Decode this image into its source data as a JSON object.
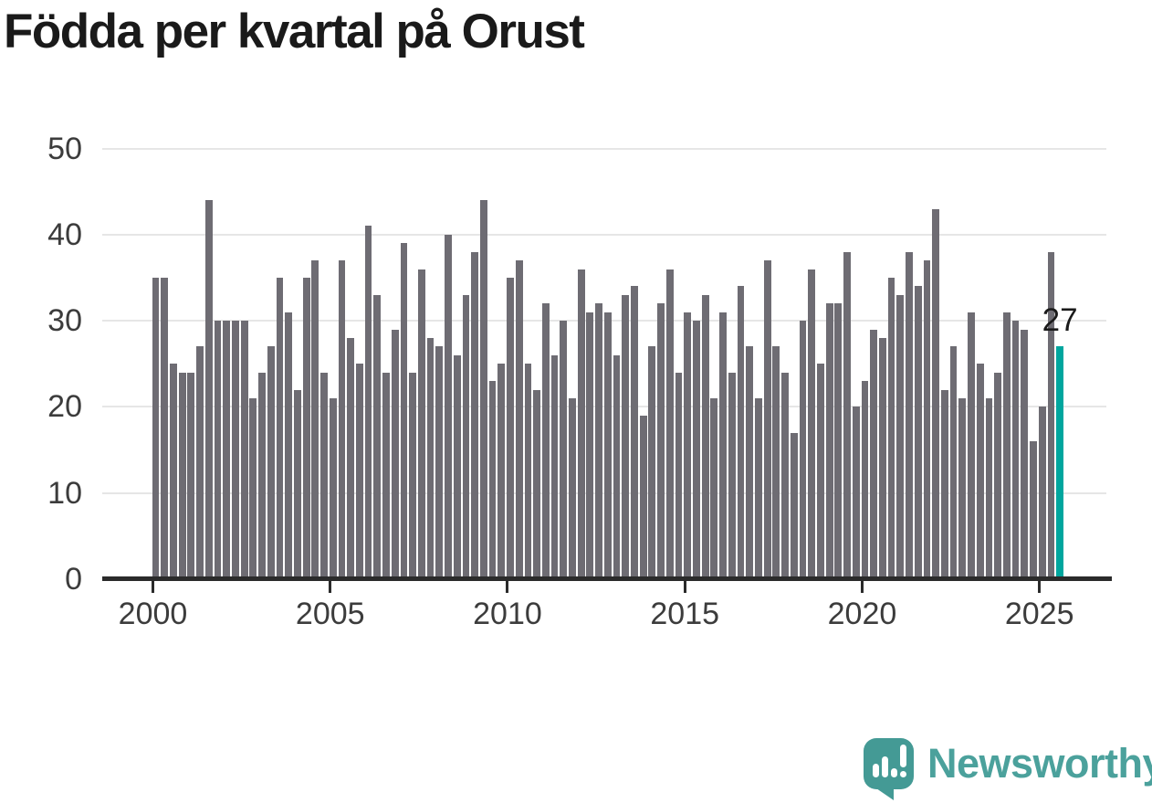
{
  "title": "Födda per kvartal på Orust",
  "colors": {
    "bar": "#6e6c73",
    "highlight": "#00a69e",
    "grid": "#e6e6e6",
    "axis": "#2b2b2b",
    "tick_label": "#3c3c3c",
    "title": "#1a1a1a",
    "annotation": "#1a1a1a",
    "logo_icon": "#449a95",
    "logo_text": "#4ba19c"
  },
  "chart_data": {
    "type": "bar",
    "title": "Födda per kvartal på Orust",
    "x_unit": "quarter",
    "x_start": "2000-Q1",
    "x_end": "2025-Q3",
    "x_tick_labels": [
      "2000",
      "2005",
      "2010",
      "2015",
      "2020",
      "2025"
    ],
    "x_tick_indices": [
      0,
      20,
      40,
      60,
      80,
      100
    ],
    "y_ticks": [
      0,
      10,
      20,
      30,
      40,
      50
    ],
    "ylim": [
      0,
      50
    ],
    "grid": true,
    "legend": "none",
    "values": [
      35,
      35,
      25,
      24,
      24,
      27,
      44,
      30,
      30,
      30,
      30,
      21,
      24,
      27,
      35,
      31,
      22,
      35,
      37,
      24,
      21,
      37,
      28,
      25,
      41,
      33,
      24,
      29,
      39,
      24,
      36,
      28,
      27,
      40,
      26,
      33,
      38,
      44,
      23,
      25,
      35,
      37,
      25,
      22,
      32,
      26,
      30,
      21,
      36,
      31,
      32,
      31,
      26,
      33,
      34,
      19,
      27,
      32,
      36,
      24,
      31,
      30,
      33,
      21,
      31,
      24,
      34,
      27,
      21,
      37,
      27,
      24,
      17,
      30,
      36,
      25,
      32,
      32,
      38,
      20,
      23,
      29,
      28,
      35,
      33,
      38,
      34,
      37,
      43,
      22,
      27,
      21,
      31,
      25,
      21,
      24,
      31,
      30,
      29,
      16,
      20,
      38,
      27
    ],
    "highlight_index": 102,
    "annotation": {
      "text": "27",
      "index": 102
    }
  },
  "logo": {
    "text": "Newsworthy",
    "icon": "newsworthy-bubble-chart-icon"
  }
}
